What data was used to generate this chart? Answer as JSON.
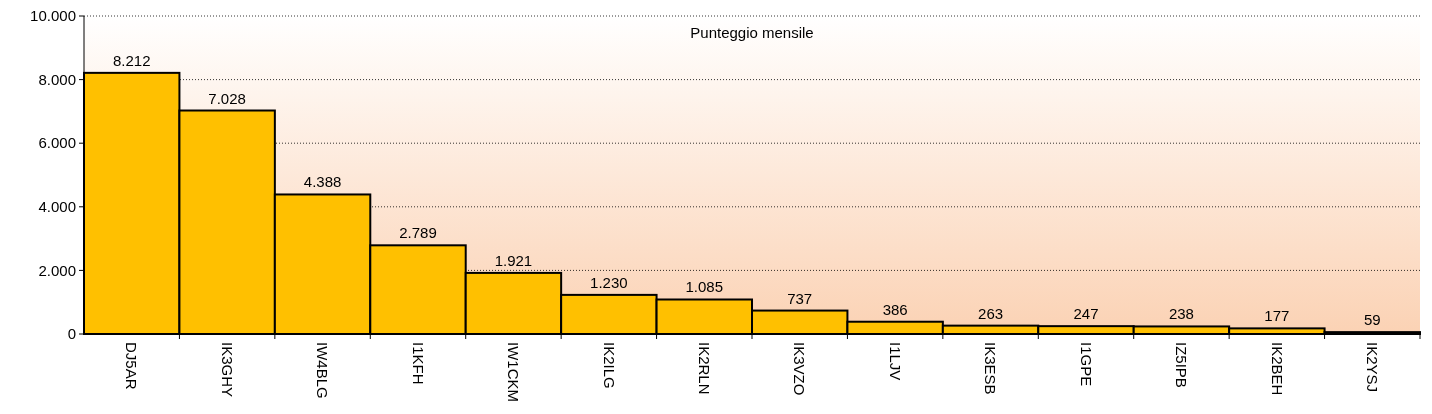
{
  "chart_data": {
    "type": "bar",
    "title": "Punteggio mensile",
    "categories": [
      "DJ5AR",
      "IK3GHY",
      "IW4BLG",
      "I1KFH",
      "IW1CKM",
      "IK2ILG",
      "IK2RLN",
      "IK3VZO",
      "I1LJV",
      "IK3ESB",
      "I1GPE",
      "IZ5IPB",
      "IK2BEH",
      "IK2YSJ"
    ],
    "values": [
      8212,
      7028,
      4388,
      2789,
      1921,
      1230,
      1085,
      737,
      386,
      263,
      247,
      238,
      177,
      59
    ],
    "value_labels": [
      "8.212",
      "7.028",
      "4.388",
      "2.789",
      "1.921",
      "1.230",
      "1.085",
      "737",
      "386",
      "263",
      "247",
      "238",
      "177",
      "59"
    ],
    "color": "#ffc000",
    "ylim": [
      0,
      10000
    ],
    "yticks": [
      {
        "value": 0,
        "label": "0"
      },
      {
        "value": 2000,
        "label": "2.000"
      },
      {
        "value": 4000,
        "label": "4.000"
      },
      {
        "value": 6000,
        "label": "6.000"
      },
      {
        "value": 8000,
        "label": "8.000"
      },
      {
        "value": 10000,
        "label": "10.000"
      }
    ],
    "grid": "y"
  }
}
